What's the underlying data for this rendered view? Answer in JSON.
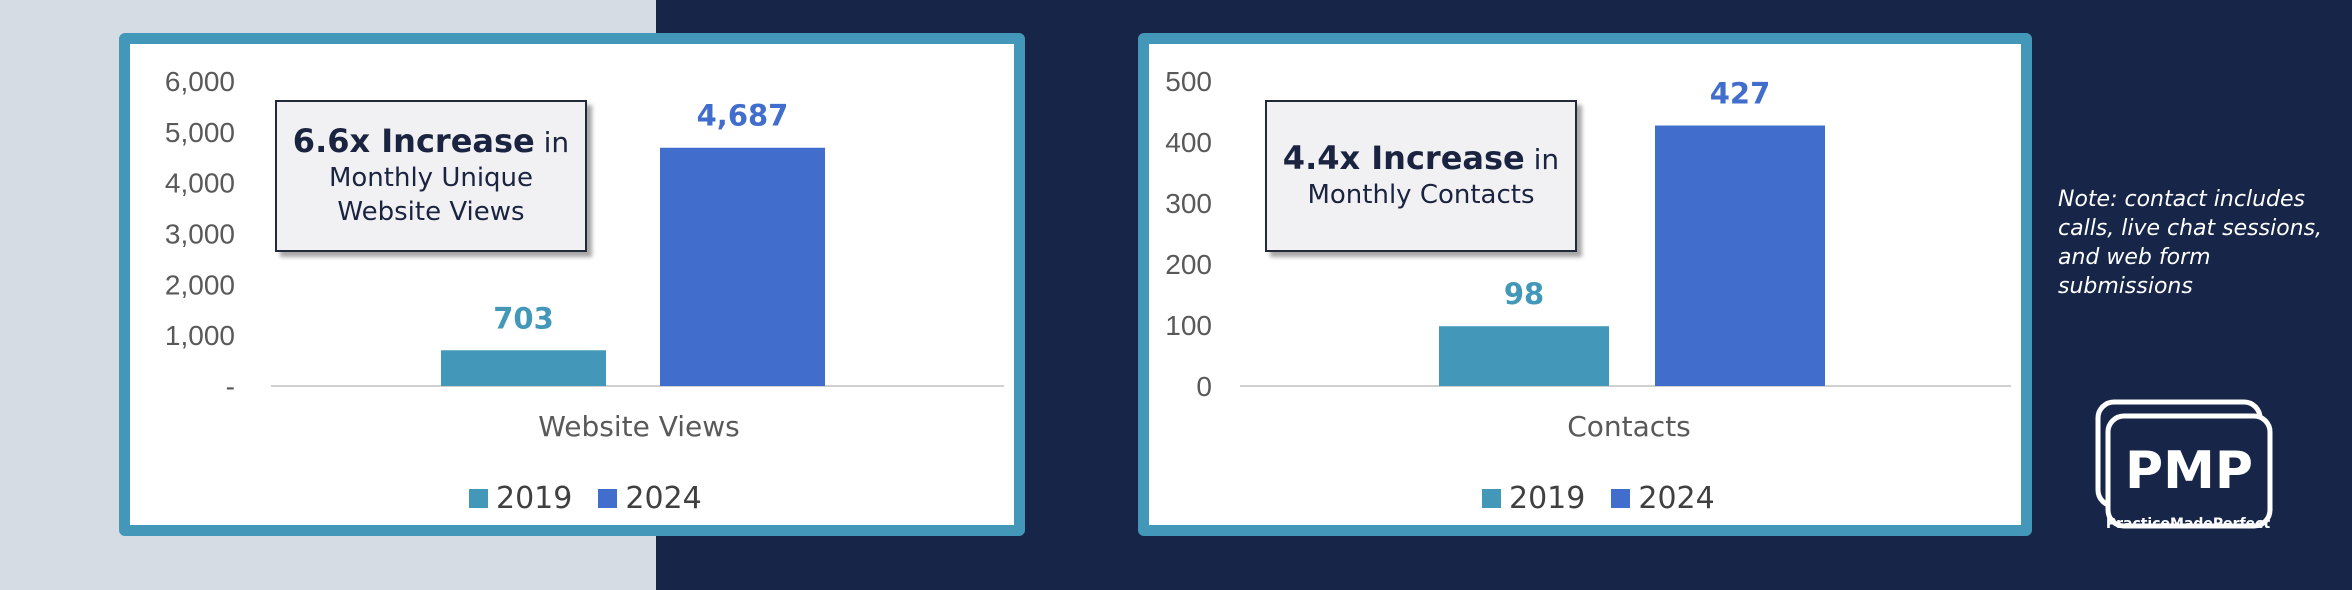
{
  "chart_data": [
    {
      "type": "bar",
      "categories": [
        "Website Views"
      ],
      "series": [
        {
          "name": "2019",
          "values": [
            703
          ],
          "color": "#4398ba"
        },
        {
          "name": "2024",
          "values": [
            4687
          ],
          "color": "#416dcd"
        }
      ],
      "data_labels": [
        "703",
        "4,687"
      ],
      "xlabel": "Website Views",
      "ylim": [
        0,
        6000
      ],
      "yticks": [
        "-",
        "1,000",
        "2,000",
        "3,000",
        "4,000",
        "5,000",
        "6,000"
      ],
      "yticks_values": [
        0,
        1000,
        2000,
        3000,
        4000,
        5000,
        6000
      ],
      "legend_position": "bottom",
      "grid": false,
      "callout": {
        "bold": "6.6x Increase",
        "after_bold": "in",
        "line2": "Monthly Unique",
        "line3": "Website Views"
      }
    },
    {
      "type": "bar",
      "categories": [
        "Contacts"
      ],
      "series": [
        {
          "name": "2019",
          "values": [
            98
          ],
          "color": "#4398ba"
        },
        {
          "name": "2024",
          "values": [
            427
          ],
          "color": "#416dcd"
        }
      ],
      "data_labels": [
        "98",
        "427"
      ],
      "xlabel": "Contacts",
      "ylim": [
        0,
        500
      ],
      "yticks": [
        "0",
        "100",
        "200",
        "300",
        "400",
        "500"
      ],
      "yticks_values": [
        0,
        100,
        200,
        300,
        400,
        500
      ],
      "legend_position": "bottom",
      "grid": false,
      "callout": {
        "bold": "4.4x Increase",
        "after_bold": "in",
        "line2": "Monthly Contacts"
      }
    }
  ],
  "note": "Note: contact includes calls, live chat sessions, and web form submissions",
  "logo": {
    "text": "PMP",
    "caption": "PracticeMadePerfect"
  },
  "colors": {
    "panel_border": "#4398ba",
    "navy_bg": "#172648",
    "left_bg": "#d6dce4"
  }
}
